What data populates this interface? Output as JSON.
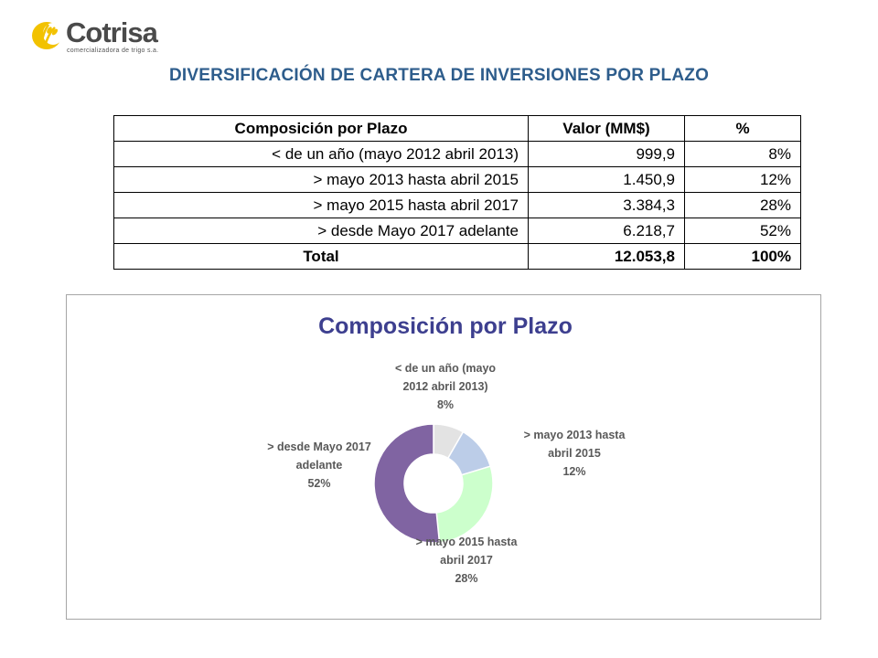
{
  "logo": {
    "name": "Cotrisa",
    "subtitle": "comercializadora de trigo s.a."
  },
  "page_title": "DIVERSIFICACIÓN DE CARTERA DE INVERSIONES POR PLAZO",
  "table": {
    "headers": [
      "Composición por Plazo",
      "Valor (MM$)",
      "%"
    ],
    "rows": [
      [
        "< de un año (mayo 2012 abril 2013)",
        "999,9",
        "8%"
      ],
      [
        "> mayo 2013 hasta abril 2015",
        "1.450,9",
        "12%"
      ],
      [
        "> mayo 2015 hasta abril 2017",
        "3.384,3",
        "28%"
      ],
      [
        "> desde Mayo 2017 adelante",
        "6.218,7",
        "52%"
      ]
    ],
    "total": [
      "Total",
      "12.053,8",
      "100%"
    ]
  },
  "chart_data": {
    "type": "pie",
    "style": "doughnut",
    "title": "Composición por Plazo",
    "categories": [
      "< de un año (mayo 2012 abril 2013)",
      "> mayo 2013 hasta abril 2015",
      "> mayo 2015 hasta abril 2017",
      "> desde Mayo 2017 adelante"
    ],
    "values": [
      999.9,
      1450.9,
      3384.3,
      6218.7
    ],
    "percent_labels": [
      "8%",
      "12%",
      "28%",
      "52%"
    ],
    "label_lines": [
      [
        "< de un año (mayo",
        "2012 abril 2013)",
        "8%"
      ],
      [
        "> mayo 2013 hasta",
        "abril 2015",
        "12%"
      ],
      [
        "> mayo 2015 hasta",
        "abril 2017",
        "28%"
      ],
      [
        "> desde Mayo 2017",
        "adelante",
        "52%"
      ]
    ],
    "colors": [
      "#e3e3e3",
      "#bccde8",
      "#ccffcc",
      "#8064a2"
    ],
    "legend": "none"
  }
}
